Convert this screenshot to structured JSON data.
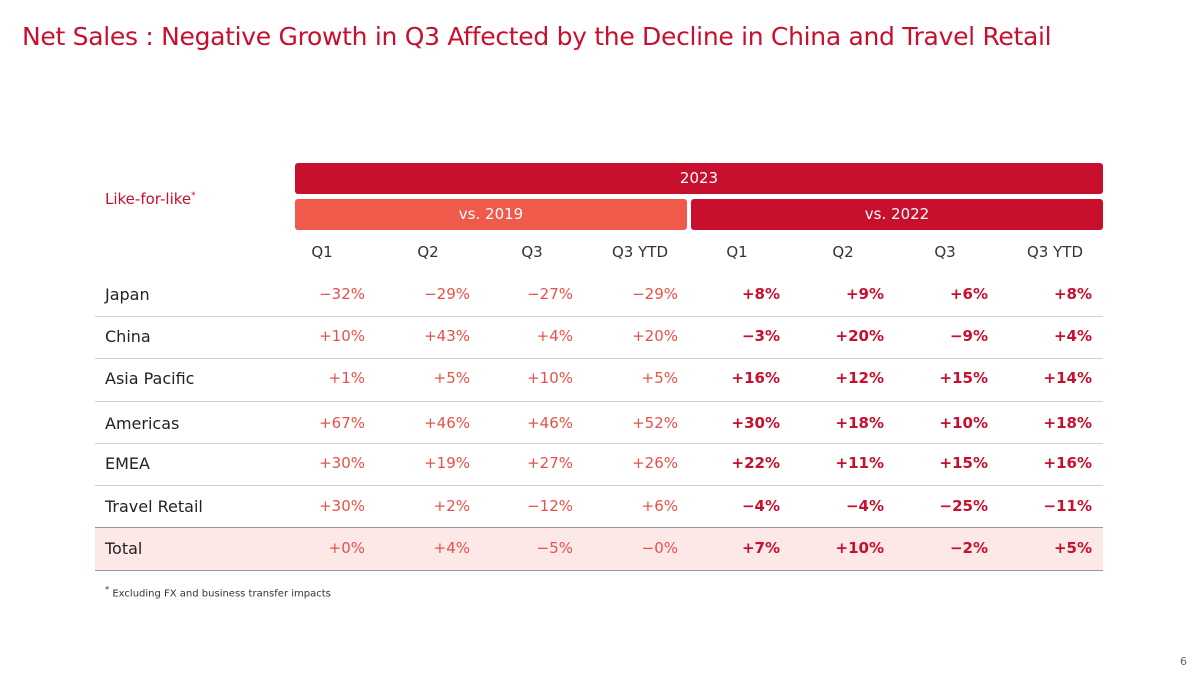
{
  "header": {
    "title": "Net Sales :  Negative Growth in Q3 Affected by the Decline in China and Travel Retail"
  },
  "table": {
    "label": "Like-for-like",
    "label_mark": "*",
    "year": "2023",
    "groups": [
      "vs. 2019",
      "vs. 2022"
    ],
    "columns": [
      "Q1",
      "Q2",
      "Q3",
      "Q3 YTD",
      "Q1",
      "Q2",
      "Q3",
      "Q3 YTD"
    ],
    "rows": [
      [
        "Japan",
        "−32%",
        "−29%",
        "−27%",
        "−29%",
        "+8%",
        "+9%",
        "+6%",
        "+8%"
      ],
      [
        "China",
        "+10%",
        "+43%",
        "+4%",
        "+20%",
        "−3%",
        "+20%",
        "−9%",
        "+4%"
      ],
      [
        "Asia Pacific",
        "+1%",
        "+5%",
        "+10%",
        "+5%",
        "+16%",
        "+12%",
        "+15%",
        "+14%"
      ],
      [
        "Americas",
        "+67%",
        "+46%",
        "+46%",
        "+52%",
        "+30%",
        "+18%",
        "+10%",
        "+18%"
      ],
      [
        "EMEA",
        "+30%",
        "+19%",
        "+27%",
        "+26%",
        "+22%",
        "+11%",
        "+15%",
        "+16%"
      ],
      [
        "Travel Retail",
        "+30%",
        "+2%",
        "−12%",
        "+6%",
        "−4%",
        "−4%",
        "−25%",
        "−11%"
      ],
      [
        "Total",
        "+0%",
        "+4%",
        "−5%",
        "−0%",
        "+7%",
        "+10%",
        "−2%",
        "+5%"
      ]
    ]
  },
  "footnote": {
    "mark": "*",
    "text": "Excluding FX and business transfer impacts"
  },
  "footer": {
    "page": "6"
  }
}
